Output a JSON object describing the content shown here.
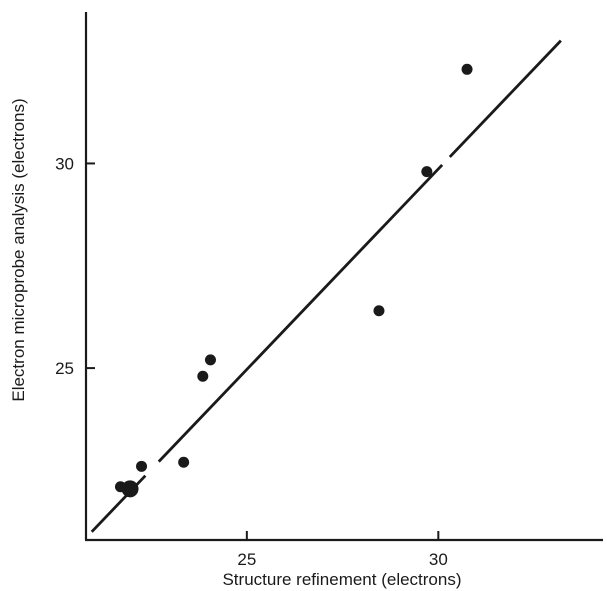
{
  "chart_data": {
    "type": "scatter",
    "title": "",
    "xlabel": "Structure refinement (electrons)",
    "ylabel": "Electron microprobe analysis (electrons)",
    "xlim": [
      20.8,
      34.3
    ],
    "ylim": [
      20.8,
      33.7
    ],
    "xticks": [
      25,
      30
    ],
    "yticks": [
      25,
      30
    ],
    "x_tick_labels": [
      "25",
      "30"
    ],
    "y_tick_labels": [
      "25",
      "30"
    ],
    "grid": false,
    "legend": "none",
    "marker_color": "#1a1a1a",
    "series": [
      {
        "points": [
          {
            "x": 21.7,
            "y": 22.1,
            "size": "small"
          },
          {
            "x": 21.95,
            "y": 22.05,
            "size": "large"
          },
          {
            "x": 22.25,
            "y": 22.6,
            "size": "small"
          },
          {
            "x": 23.35,
            "y": 22.7,
            "size": "small"
          },
          {
            "x": 23.85,
            "y": 24.8,
            "size": "small"
          },
          {
            "x": 24.05,
            "y": 25.2,
            "size": "small"
          },
          {
            "x": 28.45,
            "y": 26.4,
            "size": "small"
          },
          {
            "x": 29.7,
            "y": 29.8,
            "size": "small"
          },
          {
            "x": 30.75,
            "y": 32.3,
            "size": "small"
          }
        ]
      }
    ],
    "fit_line": {
      "start": {
        "x": 20.95,
        "y": 21.0
      },
      "end": {
        "x": 33.2,
        "y": 33.0
      },
      "gaps_x": [
        [
          22.35,
          22.7
        ],
        [
          30.1,
          30.3
        ]
      ]
    }
  }
}
